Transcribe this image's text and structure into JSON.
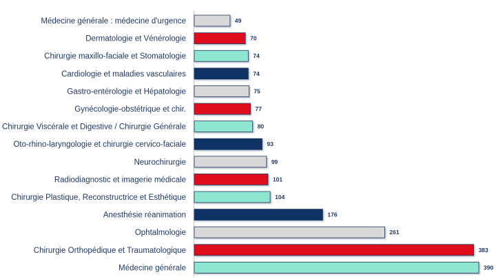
{
  "chart_data": {
    "type": "bar",
    "orientation": "horizontal",
    "title": "",
    "xlabel": "",
    "ylabel": "",
    "xlim": [
      0,
      390
    ],
    "grid": false,
    "categories": [
      "Médecine générale : médecine d'urgence",
      "Dermatologie et Vénérologie",
      "Chirurgie maxillo-faciale et Stomatologie",
      "Cardiologie et maladies vasculaires",
      "Gastro-entérologie et Hépatologie",
      "Gynécologie-obstétrique et chir.",
      "Chirurgie Viscérale et Digestive / Chirurgie Générale",
      "Oto-rhino-laryngologie et chirurgie cervico-faciale",
      "Neurochirurgie",
      "Radiodiagnostic et imagerie médicale",
      "Chirurgie Plastique, Reconstructrice et Esthétique",
      "Anesthésie réanimation",
      "Ophtalmologie",
      "Chirurgie Orthopédique et Traumatologique",
      "Médecine générale"
    ],
    "values": [
      49,
      70,
      74,
      74,
      75,
      77,
      80,
      93,
      99,
      101,
      104,
      176,
      261,
      383,
      390
    ],
    "bar_colors": [
      "#d9d9d9",
      "#e00b1c",
      "#8ee6d0",
      "#0d3263"
    ]
  }
}
